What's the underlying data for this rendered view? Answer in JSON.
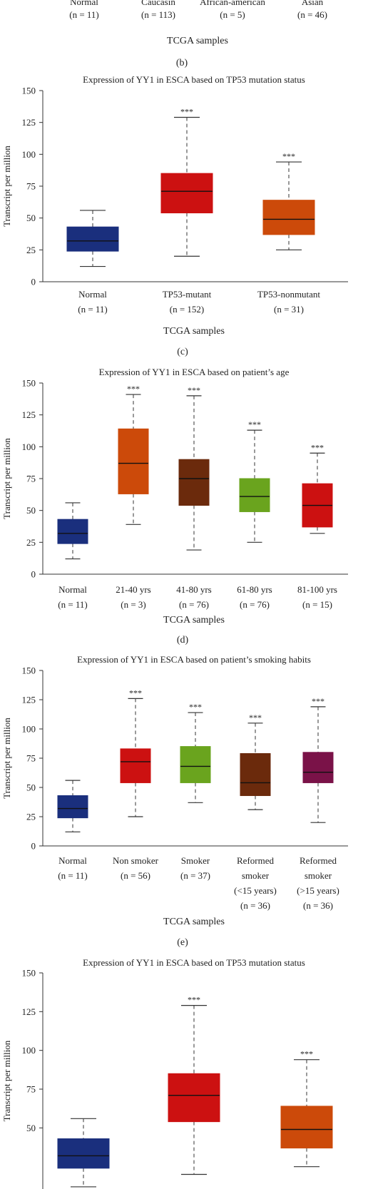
{
  "colors": {
    "normal": "#1a2f7d",
    "red": "#cc1111",
    "orange": "#cc4a0a",
    "brown": "#6b2a0c",
    "green": "#6aa41e",
    "maroon": "#7a1248",
    "axis": "#333333",
    "whisker": "#333333",
    "median": "#111111"
  },
  "panel_b_tail": {
    "categories": [
      {
        "line1": "Normal",
        "line2": "(n = 11)"
      },
      {
        "line1": "Caucasin",
        "line2": "(n = 113)"
      },
      {
        "line1": "African-american",
        "line2": "(n = 5)"
      },
      {
        "line1": "Asian",
        "line2": "(n = 46)"
      }
    ],
    "xlabel": "TCGA samples",
    "caption": "(b)"
  },
  "chart_data": [
    {
      "type": "box",
      "panel": "c",
      "title": "Expression of YY1 in ESCA based on TP53 mutation status",
      "ylabel": "Transcript per million",
      "xlabel": "TCGA samples",
      "caption": "(c)",
      "ylim": [
        0,
        150
      ],
      "yticks": [
        0,
        25,
        50,
        75,
        100,
        125,
        150
      ],
      "significance": "***",
      "boxes": [
        {
          "label": [
            "Normal",
            "(n = 11)"
          ],
          "min": 12,
          "q1": 24,
          "median": 32,
          "q3": 43,
          "max": 56,
          "color": "normal",
          "sig": false
        },
        {
          "label": [
            "TP53-mutant",
            "(n = 152)"
          ],
          "min": 20,
          "q1": 54,
          "median": 71,
          "q3": 85,
          "max": 129,
          "color": "red",
          "sig": true
        },
        {
          "label": [
            "TP53-nonmutant",
            "(n = 31)"
          ],
          "min": 25,
          "q1": 37,
          "median": 49,
          "q3": 64,
          "max": 94,
          "color": "orange",
          "sig": true
        }
      ]
    },
    {
      "type": "box",
      "panel": "d",
      "title": "Expression of YY1 in ESCA based on patient’s age",
      "ylabel": "Transcript per million",
      "xlabel": "TCGA samples",
      "caption": "(d)",
      "ylim": [
        0,
        150
      ],
      "yticks": [
        0,
        25,
        50,
        75,
        100,
        125,
        150
      ],
      "significance": "***",
      "boxes": [
        {
          "label": [
            "Normal",
            "(n = 11)"
          ],
          "min": 12,
          "q1": 24,
          "median": 32,
          "q3": 43,
          "max": 56,
          "color": "normal",
          "sig": false
        },
        {
          "label": [
            "21-40 yrs",
            "(n = 3)"
          ],
          "min": 39,
          "q1": 63,
          "median": 87,
          "q3": 114,
          "max": 141,
          "color": "orange",
          "sig": true
        },
        {
          "label": [
            "41-80 yrs",
            "(n = 76)"
          ],
          "min": 19,
          "q1": 54,
          "median": 75,
          "q3": 90,
          "max": 140,
          "color": "brown",
          "sig": true
        },
        {
          "label": [
            "61-80 yrs",
            "(n = 76)"
          ],
          "min": 25,
          "q1": 49,
          "median": 61,
          "q3": 75,
          "max": 113,
          "color": "green",
          "sig": true
        },
        {
          "label": [
            "81-100 yrs",
            "(n = 15)"
          ],
          "min": 32,
          "q1": 37,
          "median": 54,
          "q3": 71,
          "max": 95,
          "color": "red",
          "sig": true
        }
      ]
    },
    {
      "type": "box",
      "panel": "e",
      "title": "Expression of YY1 in ESCA based on patient’s smoking habits",
      "ylabel": "Transcript per million",
      "xlabel": "TCGA samples",
      "caption": "(e)",
      "ylim": [
        0,
        150
      ],
      "yticks": [
        0,
        25,
        50,
        75,
        100,
        125,
        150
      ],
      "significance": "***",
      "boxes": [
        {
          "label": [
            "Normal",
            "(n = 11)"
          ],
          "min": 12,
          "q1": 24,
          "median": 32,
          "q3": 43,
          "max": 56,
          "color": "normal",
          "sig": false
        },
        {
          "label": [
            "Non smoker",
            "(n = 56)"
          ],
          "min": 25,
          "q1": 54,
          "median": 72,
          "q3": 83,
          "max": 126,
          "color": "red",
          "sig": true
        },
        {
          "label": [
            "Smoker",
            "(n = 37)"
          ],
          "min": 37,
          "q1": 54,
          "median": 68,
          "q3": 85,
          "max": 114,
          "color": "green",
          "sig": true
        },
        {
          "label": [
            "Reformed",
            "smoker",
            "(<15 years)",
            "(n = 36)"
          ],
          "min": 31,
          "q1": 43,
          "median": 54,
          "q3": 79,
          "max": 105,
          "color": "brown",
          "sig": true
        },
        {
          "label": [
            "Reformed",
            "smoker",
            "(>15 years)",
            "(n = 36)"
          ],
          "min": 20,
          "q1": 54,
          "median": 63,
          "q3": 80,
          "max": 119,
          "color": "maroon",
          "sig": true
        }
      ]
    },
    {
      "type": "box",
      "panel": "f",
      "title": "Expression of YY1 in ESCA based on TP53 mutation status",
      "ylabel": "Transcript per million",
      "ylim": [
        0,
        150
      ],
      "yticks": [
        50,
        75,
        100,
        125,
        150
      ],
      "significance": "***",
      "boxes": [
        {
          "label": [],
          "min": 12,
          "q1": 24,
          "median": 32,
          "q3": 43,
          "max": 56,
          "color": "normal",
          "sig": false
        },
        {
          "label": [],
          "min": 20,
          "q1": 54,
          "median": 71,
          "q3": 85,
          "max": 129,
          "color": "red",
          "sig": true
        },
        {
          "label": [],
          "min": 25,
          "q1": 37,
          "median": 49,
          "q3": 64,
          "max": 94,
          "color": "orange",
          "sig": true
        }
      ]
    }
  ]
}
